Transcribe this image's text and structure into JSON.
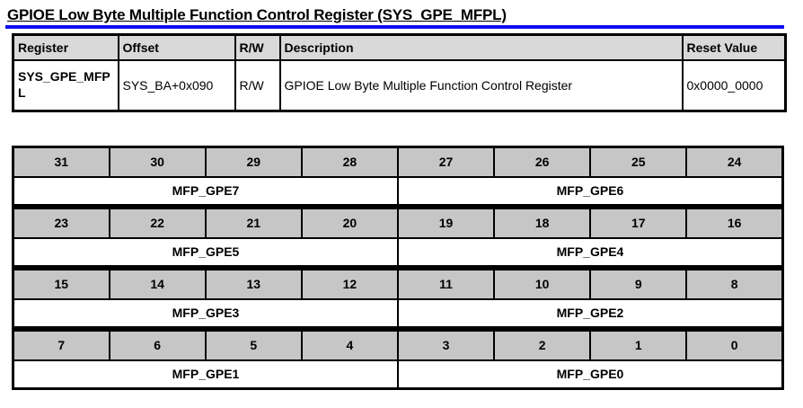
{
  "title": "GPIOE Low Byte Multiple Function Control Register (SYS_GPE_MFPL)",
  "colors": {
    "title_rule_blue": "#0d0df0",
    "table_header_gray": "#d9d9d9",
    "bit_cell_gray": "#c6c6c6",
    "border_black": "#000000",
    "page_background": "#ffffff"
  },
  "register_table": {
    "headers": [
      "Register",
      "Offset",
      "R/W",
      "Description",
      "Reset Value"
    ],
    "rows": [
      {
        "register": "SYS_GPE_MFPL",
        "offset": "SYS_BA+0x090",
        "rw": "R/W",
        "description": "GPIOE Low Byte Multiple Function Control Register",
        "reset_value": "0x0000_0000"
      }
    ]
  },
  "bitfield_table": {
    "rows": [
      {
        "bits": [
          "31",
          "30",
          "29",
          "28",
          "27",
          "26",
          "25",
          "24"
        ],
        "fields": [
          "MFP_GPE7",
          "MFP_GPE6"
        ]
      },
      {
        "bits": [
          "23",
          "22",
          "21",
          "20",
          "19",
          "18",
          "17",
          "16"
        ],
        "fields": [
          "MFP_GPE5",
          "MFP_GPE4"
        ]
      },
      {
        "bits": [
          "15",
          "14",
          "13",
          "12",
          "11",
          "10",
          "9",
          "8"
        ],
        "fields": [
          "MFP_GPE3",
          "MFP_GPE2"
        ]
      },
      {
        "bits": [
          "7",
          "6",
          "5",
          "4",
          "3",
          "2",
          "1",
          "0"
        ],
        "fields": [
          "MFP_GPE1",
          "MFP_GPE0"
        ]
      }
    ]
  }
}
